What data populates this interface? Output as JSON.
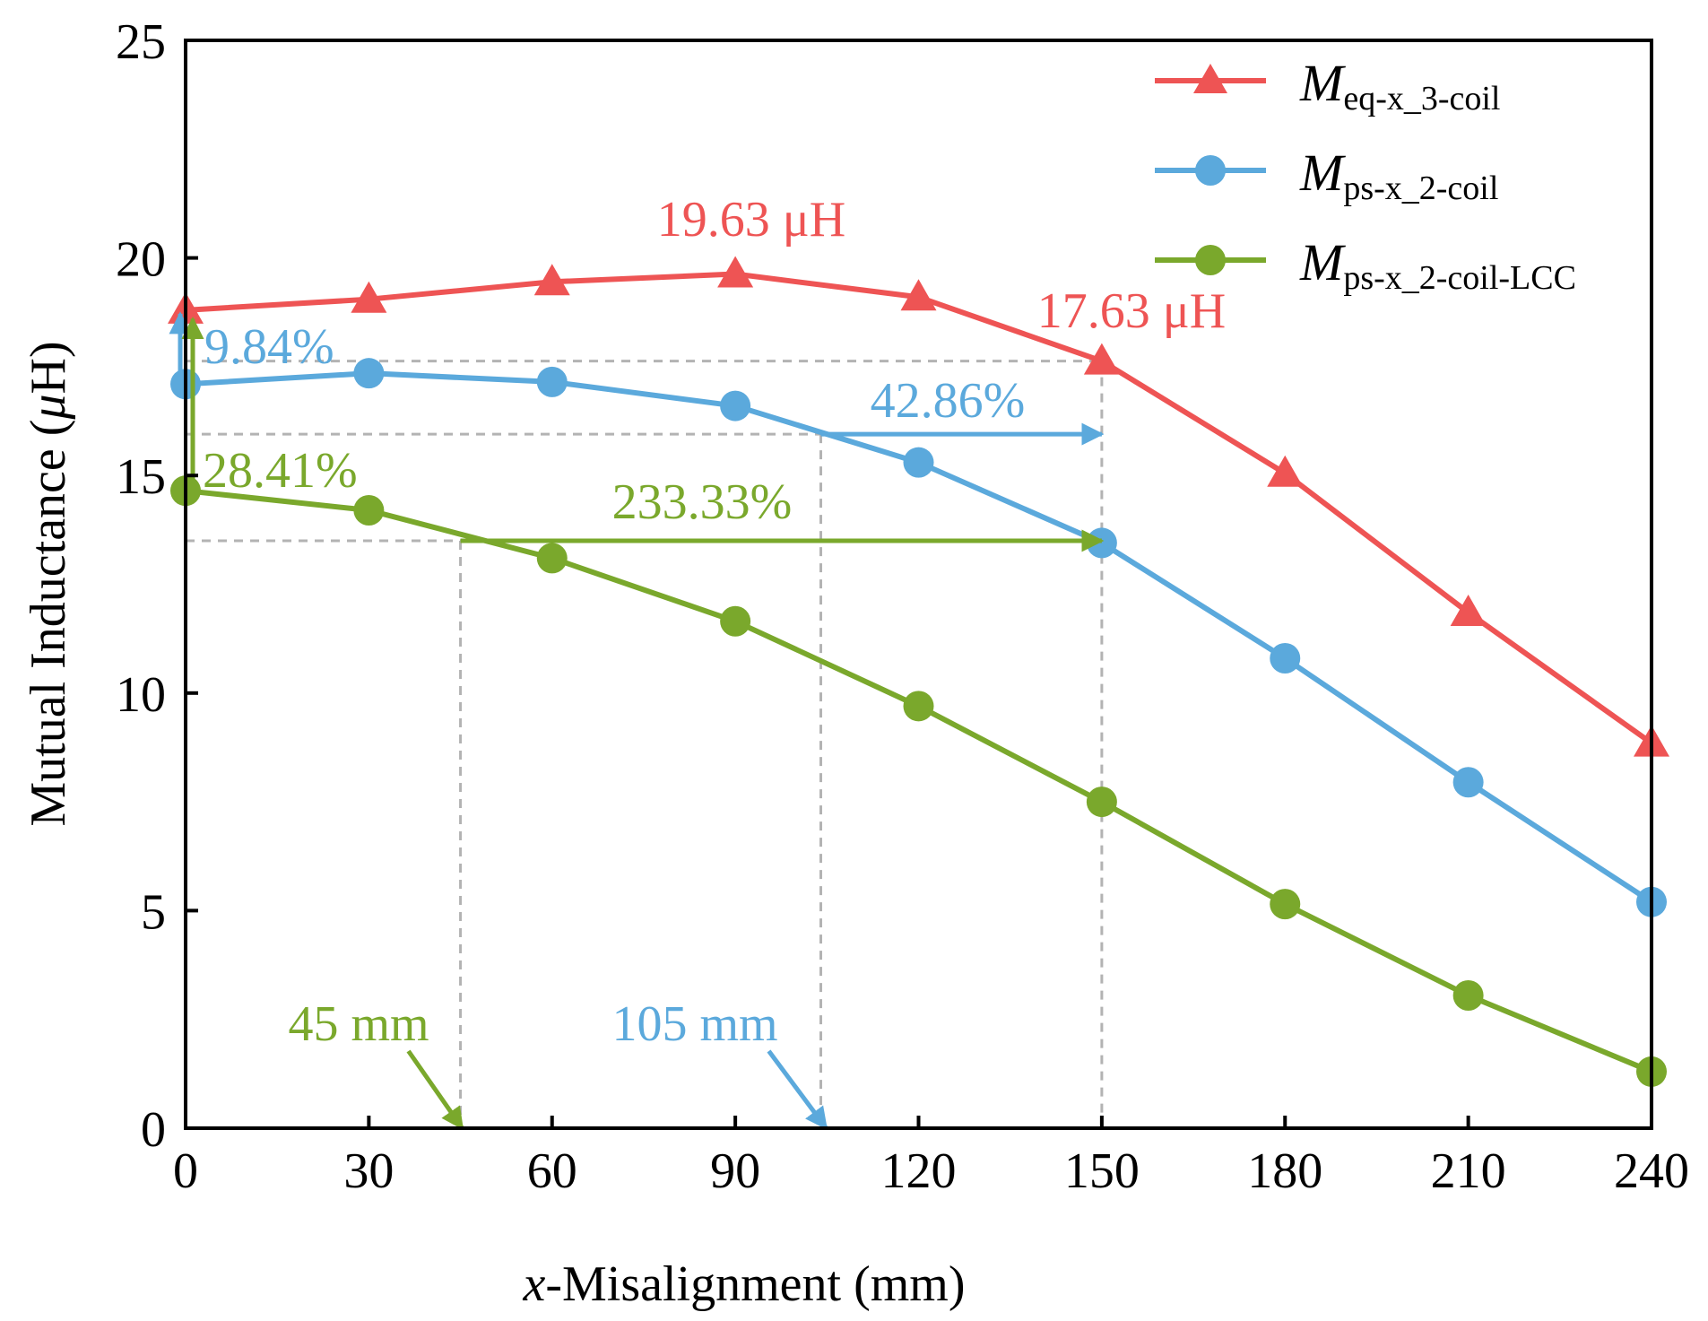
{
  "chart_data": {
    "type": "line",
    "xlabel_prefix": "x",
    "xlabel_rest": "-Misalignment (mm)",
    "ylabel_main": "Mutual Inductance (",
    "ylabel_unit": "μ",
    "ylabel_close": "H)",
    "xlim": [
      0,
      240
    ],
    "ylim": [
      0,
      25
    ],
    "xticks": [
      0,
      30,
      60,
      90,
      120,
      150,
      180,
      210,
      240
    ],
    "yticks": [
      0,
      5,
      10,
      15,
      20,
      25
    ],
    "grid": false,
    "legend_position": "top-right",
    "x": [
      0,
      30,
      60,
      90,
      120,
      150,
      180,
      210,
      240
    ],
    "series": [
      {
        "name_main": "M",
        "name_sub": "eq-x_3-coil",
        "color": "#ee5454",
        "marker": "triangle",
        "values": [
          18.8,
          19.05,
          19.45,
          19.63,
          19.1,
          17.63,
          15.05,
          11.85,
          8.85
        ]
      },
      {
        "name_main": "M",
        "name_sub": "ps-x_2-coil",
        "color": "#5ba9dc",
        "marker": "circle",
        "values": [
          17.1,
          17.35,
          17.15,
          16.6,
          15.3,
          13.45,
          10.8,
          7.95,
          5.2
        ]
      },
      {
        "name_main": "M",
        "name_sub": "ps-x_2-coil-LCC",
        "color": "#7aa82c",
        "marker": "circle",
        "values": [
          14.65,
          14.2,
          13.1,
          11.65,
          9.7,
          7.5,
          5.15,
          3.05,
          1.3
        ]
      }
    ],
    "annotations": {
      "peak_label": "19.63 μH",
      "at150_label": "17.63 μH",
      "blue_drop": "9.84%",
      "green_drop": "28.41%",
      "blue_gain": "42.86%",
      "green_gain": "233.33%",
      "blue_x": "105 mm",
      "green_x": "45 mm"
    }
  }
}
